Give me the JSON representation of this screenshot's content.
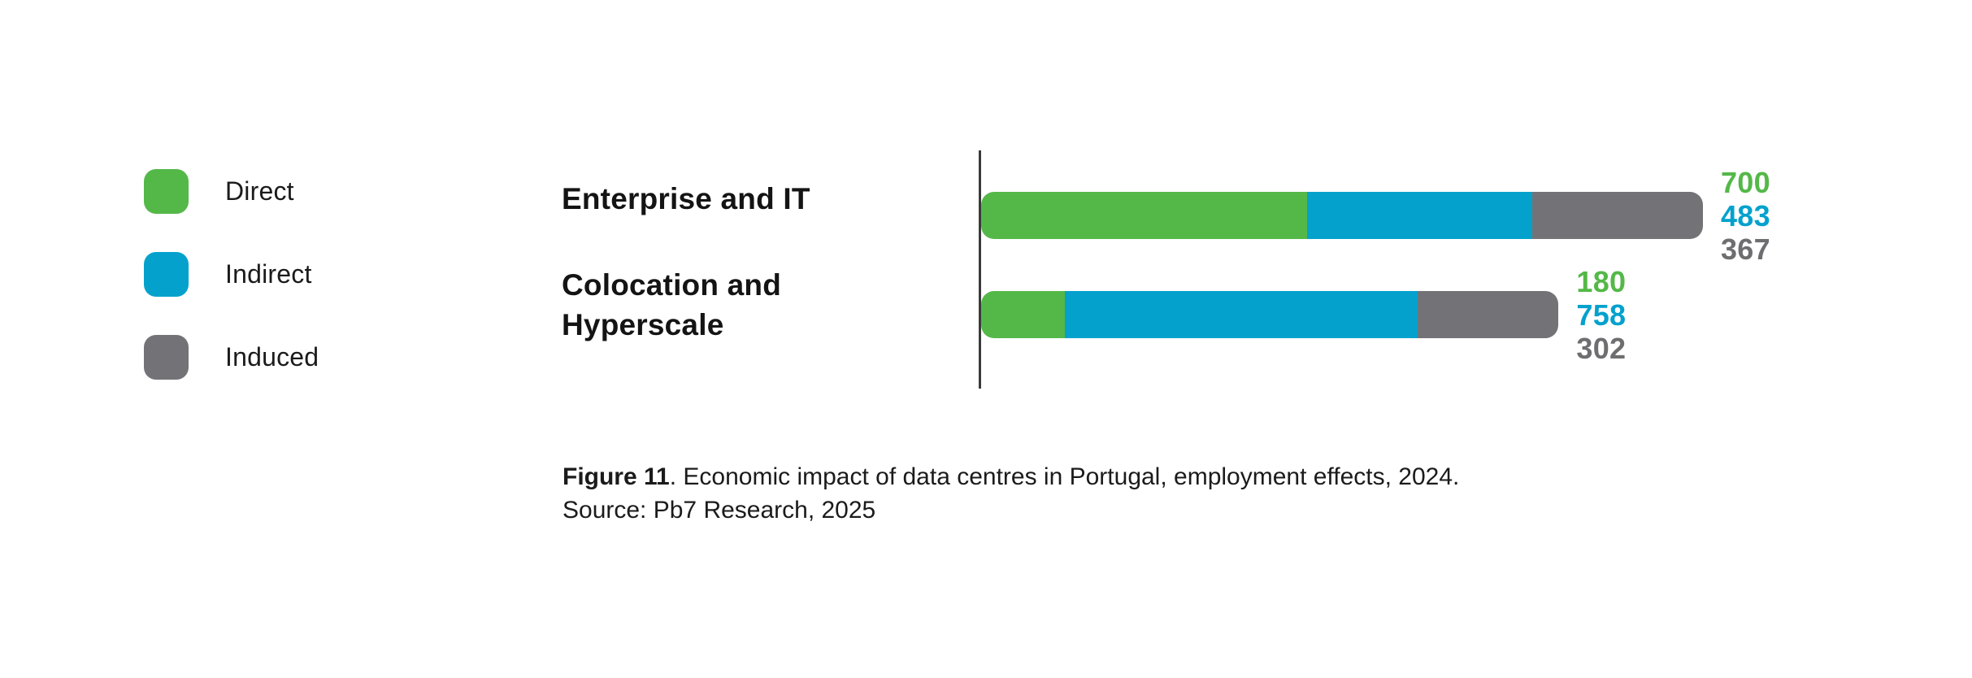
{
  "colors": {
    "direct": "#54b848",
    "indirect": "#04a1cd",
    "induced": "#737377",
    "value_induced": "#6e6e71",
    "axis": "#3a3a3a",
    "text": "#1b1b1b"
  },
  "legend": {
    "items": [
      {
        "label": "Direct",
        "color_key": "direct"
      },
      {
        "label": "Indirect",
        "color_key": "indirect"
      },
      {
        "label": "Induced",
        "color_key": "induced"
      }
    ]
  },
  "chart_data": {
    "type": "bar",
    "orientation": "horizontal",
    "stacked": true,
    "title": "",
    "categories": [
      "Enterprise and IT",
      "Colocation and Hyperscale"
    ],
    "category_display_lines": [
      [
        "Enterprise and IT"
      ],
      [
        "Colocation and",
        "Hyperscale"
      ]
    ],
    "series": [
      {
        "name": "Direct",
        "values": [
          700,
          180
        ]
      },
      {
        "name": "Indirect",
        "values": [
          483,
          758
        ]
      },
      {
        "name": "Induced",
        "values": [
          367,
          302
        ]
      }
    ],
    "totals": [
      1550,
      1240
    ],
    "value_labels": "stacked to the right of each bar end, one per segment, colored by series",
    "legend_position": "left",
    "grid": false,
    "x_axis_shown": false,
    "y_axis_baseline_shown": true
  },
  "caption": {
    "figure_label": "Figure 11",
    "figure_text": ". Economic impact of data centres in Portugal, employment effects, 2024.",
    "source_line": "Source: Pb7 Research, 2025"
  }
}
